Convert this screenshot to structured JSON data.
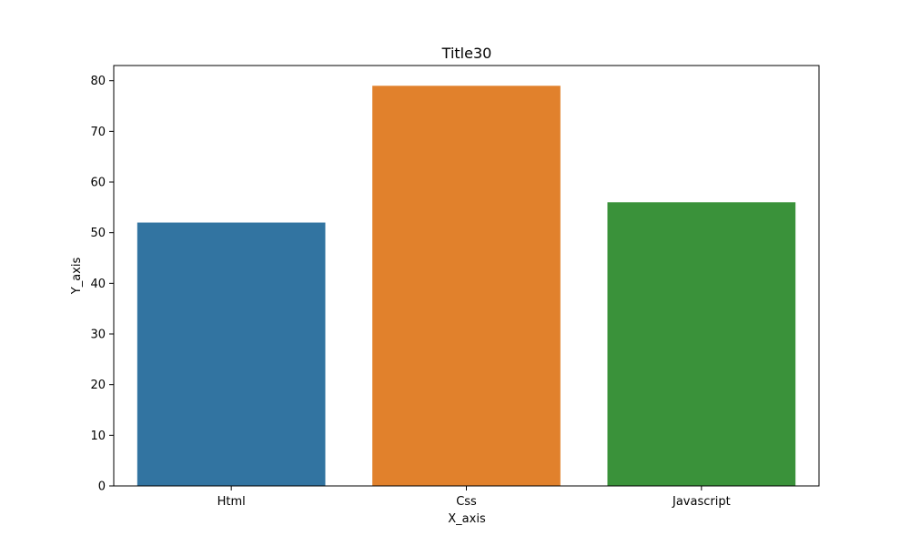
{
  "chart_data": {
    "type": "bar",
    "title": "Title30",
    "xlabel": "X_axis",
    "ylabel": "Y_axis",
    "categories": [
      "Html",
      "Css",
      "Javascript"
    ],
    "values": [
      52,
      79,
      56
    ],
    "colors": [
      "#3274a1",
      "#e1812c",
      "#3a923a"
    ],
    "ylim": [
      0,
      83
    ],
    "yticks": [
      0,
      10,
      20,
      30,
      40,
      50,
      60,
      70,
      80
    ],
    "ytick_labels": [
      "0",
      "10",
      "20",
      "30",
      "40",
      "50",
      "60",
      "70",
      "80"
    ],
    "grid": false,
    "legend": "none"
  }
}
